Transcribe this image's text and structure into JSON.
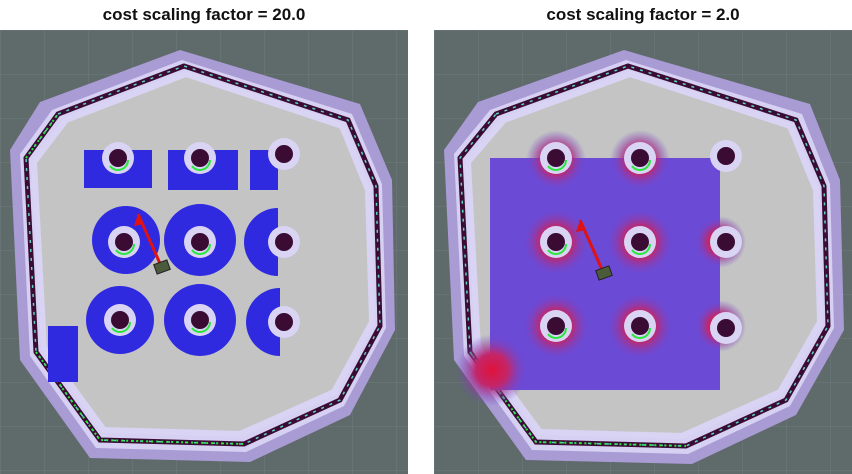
{
  "panels": [
    {
      "title": "cost scaling factor = 20.0",
      "cost_scaling_factor": 20.0
    },
    {
      "title": "cost scaling factor = 2.0",
      "cost_scaling_factor": 2.0
    }
  ],
  "colors": {
    "floor": "#5f6a6b",
    "grid": "#6f7b7c",
    "free_space": "#c4c4c4",
    "inflation_halo": "#b8a8de",
    "inflated_inner": "#d9d3f4",
    "wall": "#3a0c33",
    "wall_edge_cyan": "#5fd1c7",
    "scan_points": "#27e83a",
    "costmap_high": "#2f29e0",
    "costmap_gradient_mid": "#6b4ad6",
    "costmap_lethal_edge": "#e0123b",
    "robot_heading_arrow": "#e01212",
    "robot_footprint": "#4a5a3a"
  },
  "icons": {
    "robot": "robot-footprint-icon",
    "heading": "heading-arrow-icon"
  }
}
